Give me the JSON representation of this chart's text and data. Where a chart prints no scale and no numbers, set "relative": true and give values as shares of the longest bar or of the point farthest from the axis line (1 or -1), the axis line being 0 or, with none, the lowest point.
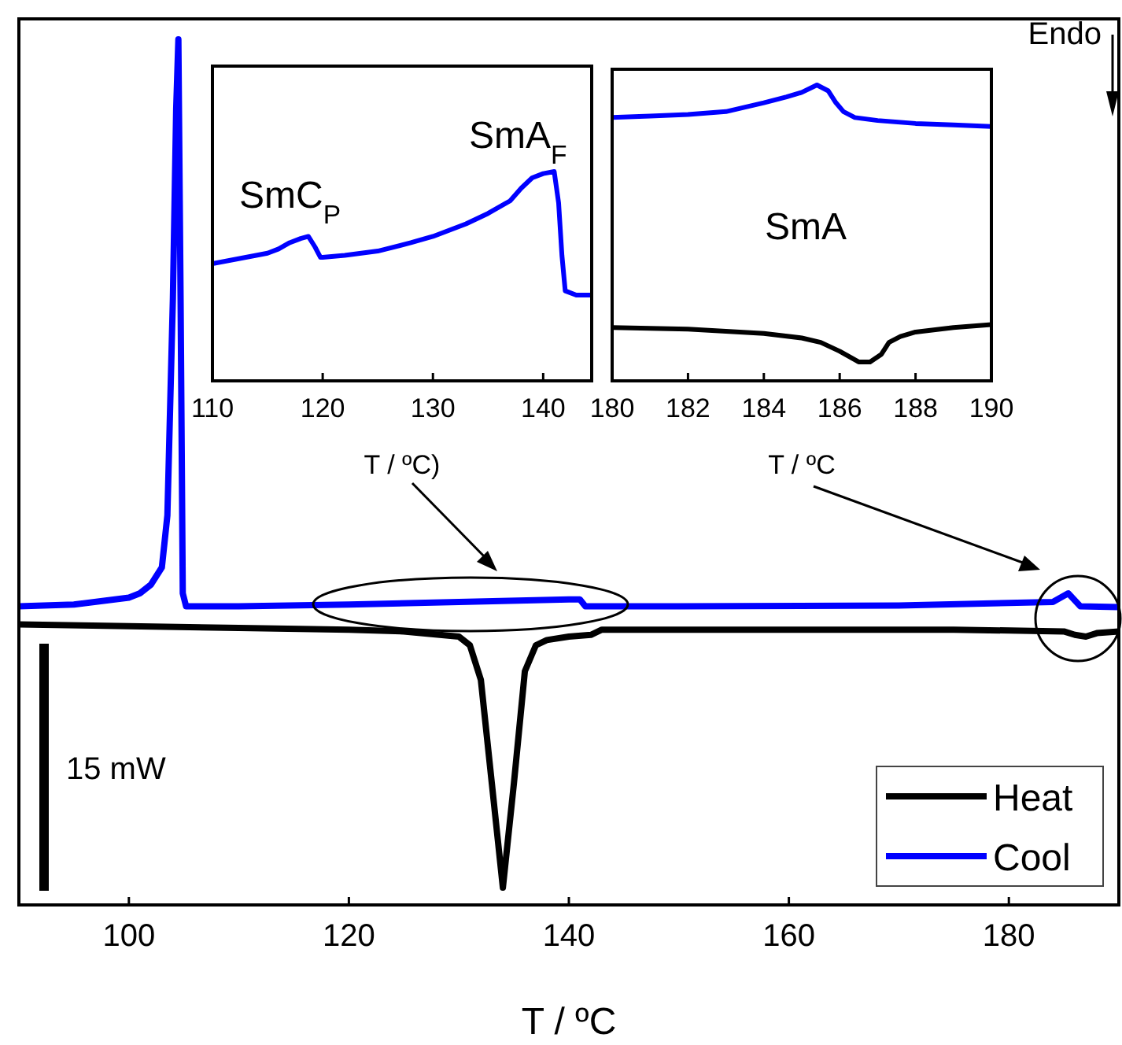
{
  "chart_data": [
    {
      "type": "line",
      "relative": true,
      "xlabel": "T / ºC",
      "xlim": [
        90,
        190
      ],
      "xticks": [
        100,
        120,
        140,
        160,
        180
      ],
      "legend": "bottom right",
      "annotations": [
        "15 mW",
        "Endo"
      ],
      "series": [
        {
          "name": "Heat",
          "color": "#000000",
          "x": [
            90,
            100,
            110,
            120,
            125,
            130,
            131,
            132,
            133,
            134,
            135,
            136,
            137,
            138,
            140,
            142,
            143,
            145,
            160,
            175,
            185,
            186,
            187,
            188,
            190
          ],
          "values": [
            0.324,
            0.322,
            0.32,
            0.318,
            0.316,
            0.31,
            0.3,
            0.26,
            0.14,
            0.02,
            0.14,
            0.27,
            0.3,
            0.306,
            0.31,
            0.312,
            0.318,
            0.318,
            0.318,
            0.318,
            0.316,
            0.312,
            0.31,
            0.314,
            0.316
          ]
        },
        {
          "name": "Cool",
          "color": "#0000ff",
          "x": [
            90,
            95,
            100,
            101,
            102,
            103,
            103.5,
            104,
            104.3,
            104.5,
            104.7,
            104.9,
            105.2,
            110,
            120,
            130,
            140,
            141,
            141.5,
            150,
            170,
            184,
            185.4,
            186.5,
            190
          ],
          "values": [
            0.345,
            0.347,
            0.355,
            0.36,
            0.37,
            0.39,
            0.45,
            0.7,
            0.92,
            1.0,
            0.7,
            0.36,
            0.345,
            0.345,
            0.347,
            0.35,
            0.353,
            0.353,
            0.345,
            0.345,
            0.346,
            0.35,
            0.36,
            0.345,
            0.344
          ]
        }
      ]
    },
    {
      "type": "line",
      "relative": true,
      "xlabel": "T / ºC)",
      "xlim": [
        110,
        144.4
      ],
      "xticks": [
        110,
        120,
        130,
        140
      ],
      "annotations": [
        "SmC$_{P}$",
        "SmA$_{F}$"
      ],
      "series": [
        {
          "color": "#0000ff",
          "x": [
            110,
            112,
            115,
            116,
            117,
            118,
            118.7,
            119.3,
            119.8,
            120,
            122,
            125,
            128,
            130,
            133,
            135,
            137,
            138,
            139,
            140,
            141,
            141.4,
            141.7,
            142,
            143,
            144.4
          ],
          "values": [
            0.56,
            0.58,
            0.61,
            0.63,
            0.66,
            0.68,
            0.69,
            0.64,
            0.59,
            0.59,
            0.6,
            0.62,
            0.66,
            0.69,
            0.75,
            0.8,
            0.86,
            0.92,
            0.97,
            0.99,
            1.0,
            0.85,
            0.6,
            0.43,
            0.41,
            0.41
          ]
        }
      ]
    },
    {
      "type": "line",
      "relative": true,
      "xlabel": "T / ºC",
      "xlim": [
        180,
        190
      ],
      "xticks": [
        180,
        182,
        184,
        186,
        188,
        190
      ],
      "annotations": [
        "SmA"
      ],
      "series": [
        {
          "color": "#0000ff",
          "x": [
            180,
            181,
            182,
            183,
            184,
            184.6,
            185,
            185.4,
            185.7,
            185.9,
            186.1,
            186.4,
            187,
            188,
            189,
            190
          ],
          "values": [
            0.89,
            0.895,
            0.9,
            0.91,
            0.94,
            0.96,
            0.975,
            1.0,
            0.98,
            0.94,
            0.91,
            0.89,
            0.88,
            0.87,
            0.865,
            0.86
          ]
        },
        {
          "color": "#000000",
          "x": [
            180,
            182,
            184,
            185,
            185.5,
            186,
            186.5,
            186.8,
            187.1,
            187.3,
            187.6,
            188,
            189,
            190
          ],
          "values": [
            0.18,
            0.175,
            0.16,
            0.145,
            0.13,
            0.1,
            0.064,
            0.064,
            0.09,
            0.13,
            0.15,
            0.165,
            0.18,
            0.19
          ]
        }
      ]
    }
  ]
}
